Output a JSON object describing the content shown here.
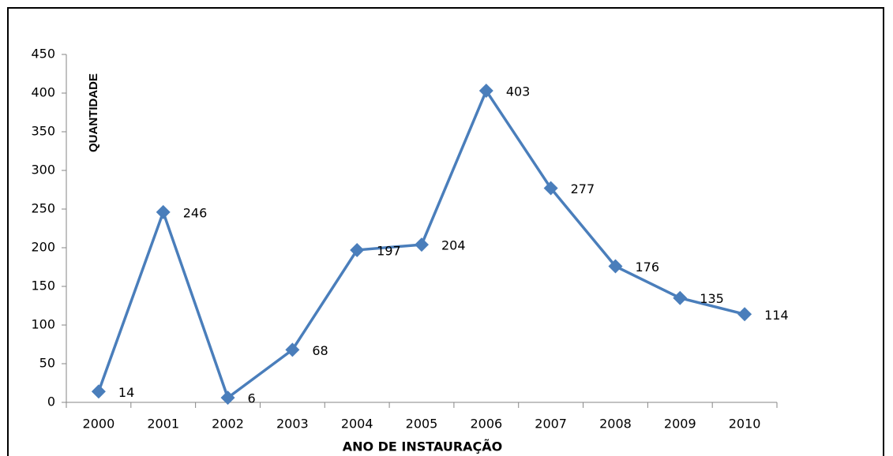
{
  "chart_data": {
    "type": "line",
    "x_label": "ANO DE INSTAURAÇÃO",
    "y_label": "QUANTIDADE",
    "categories": [
      "2000",
      "2001",
      "2002",
      "2003",
      "2004",
      "2005",
      "2006",
      "2007",
      "2008",
      "2009",
      "2010"
    ],
    "series": [
      {
        "color": "#4a7ebb",
        "values": [
          14,
          246,
          6,
          68,
          197,
          204,
          403,
          277,
          176,
          135,
          114
        ]
      }
    ],
    "ylim": [
      0,
      450
    ],
    "yticks": [
      0,
      50,
      100,
      150,
      200,
      250,
      300,
      350,
      400,
      450
    ],
    "grid": false
  }
}
